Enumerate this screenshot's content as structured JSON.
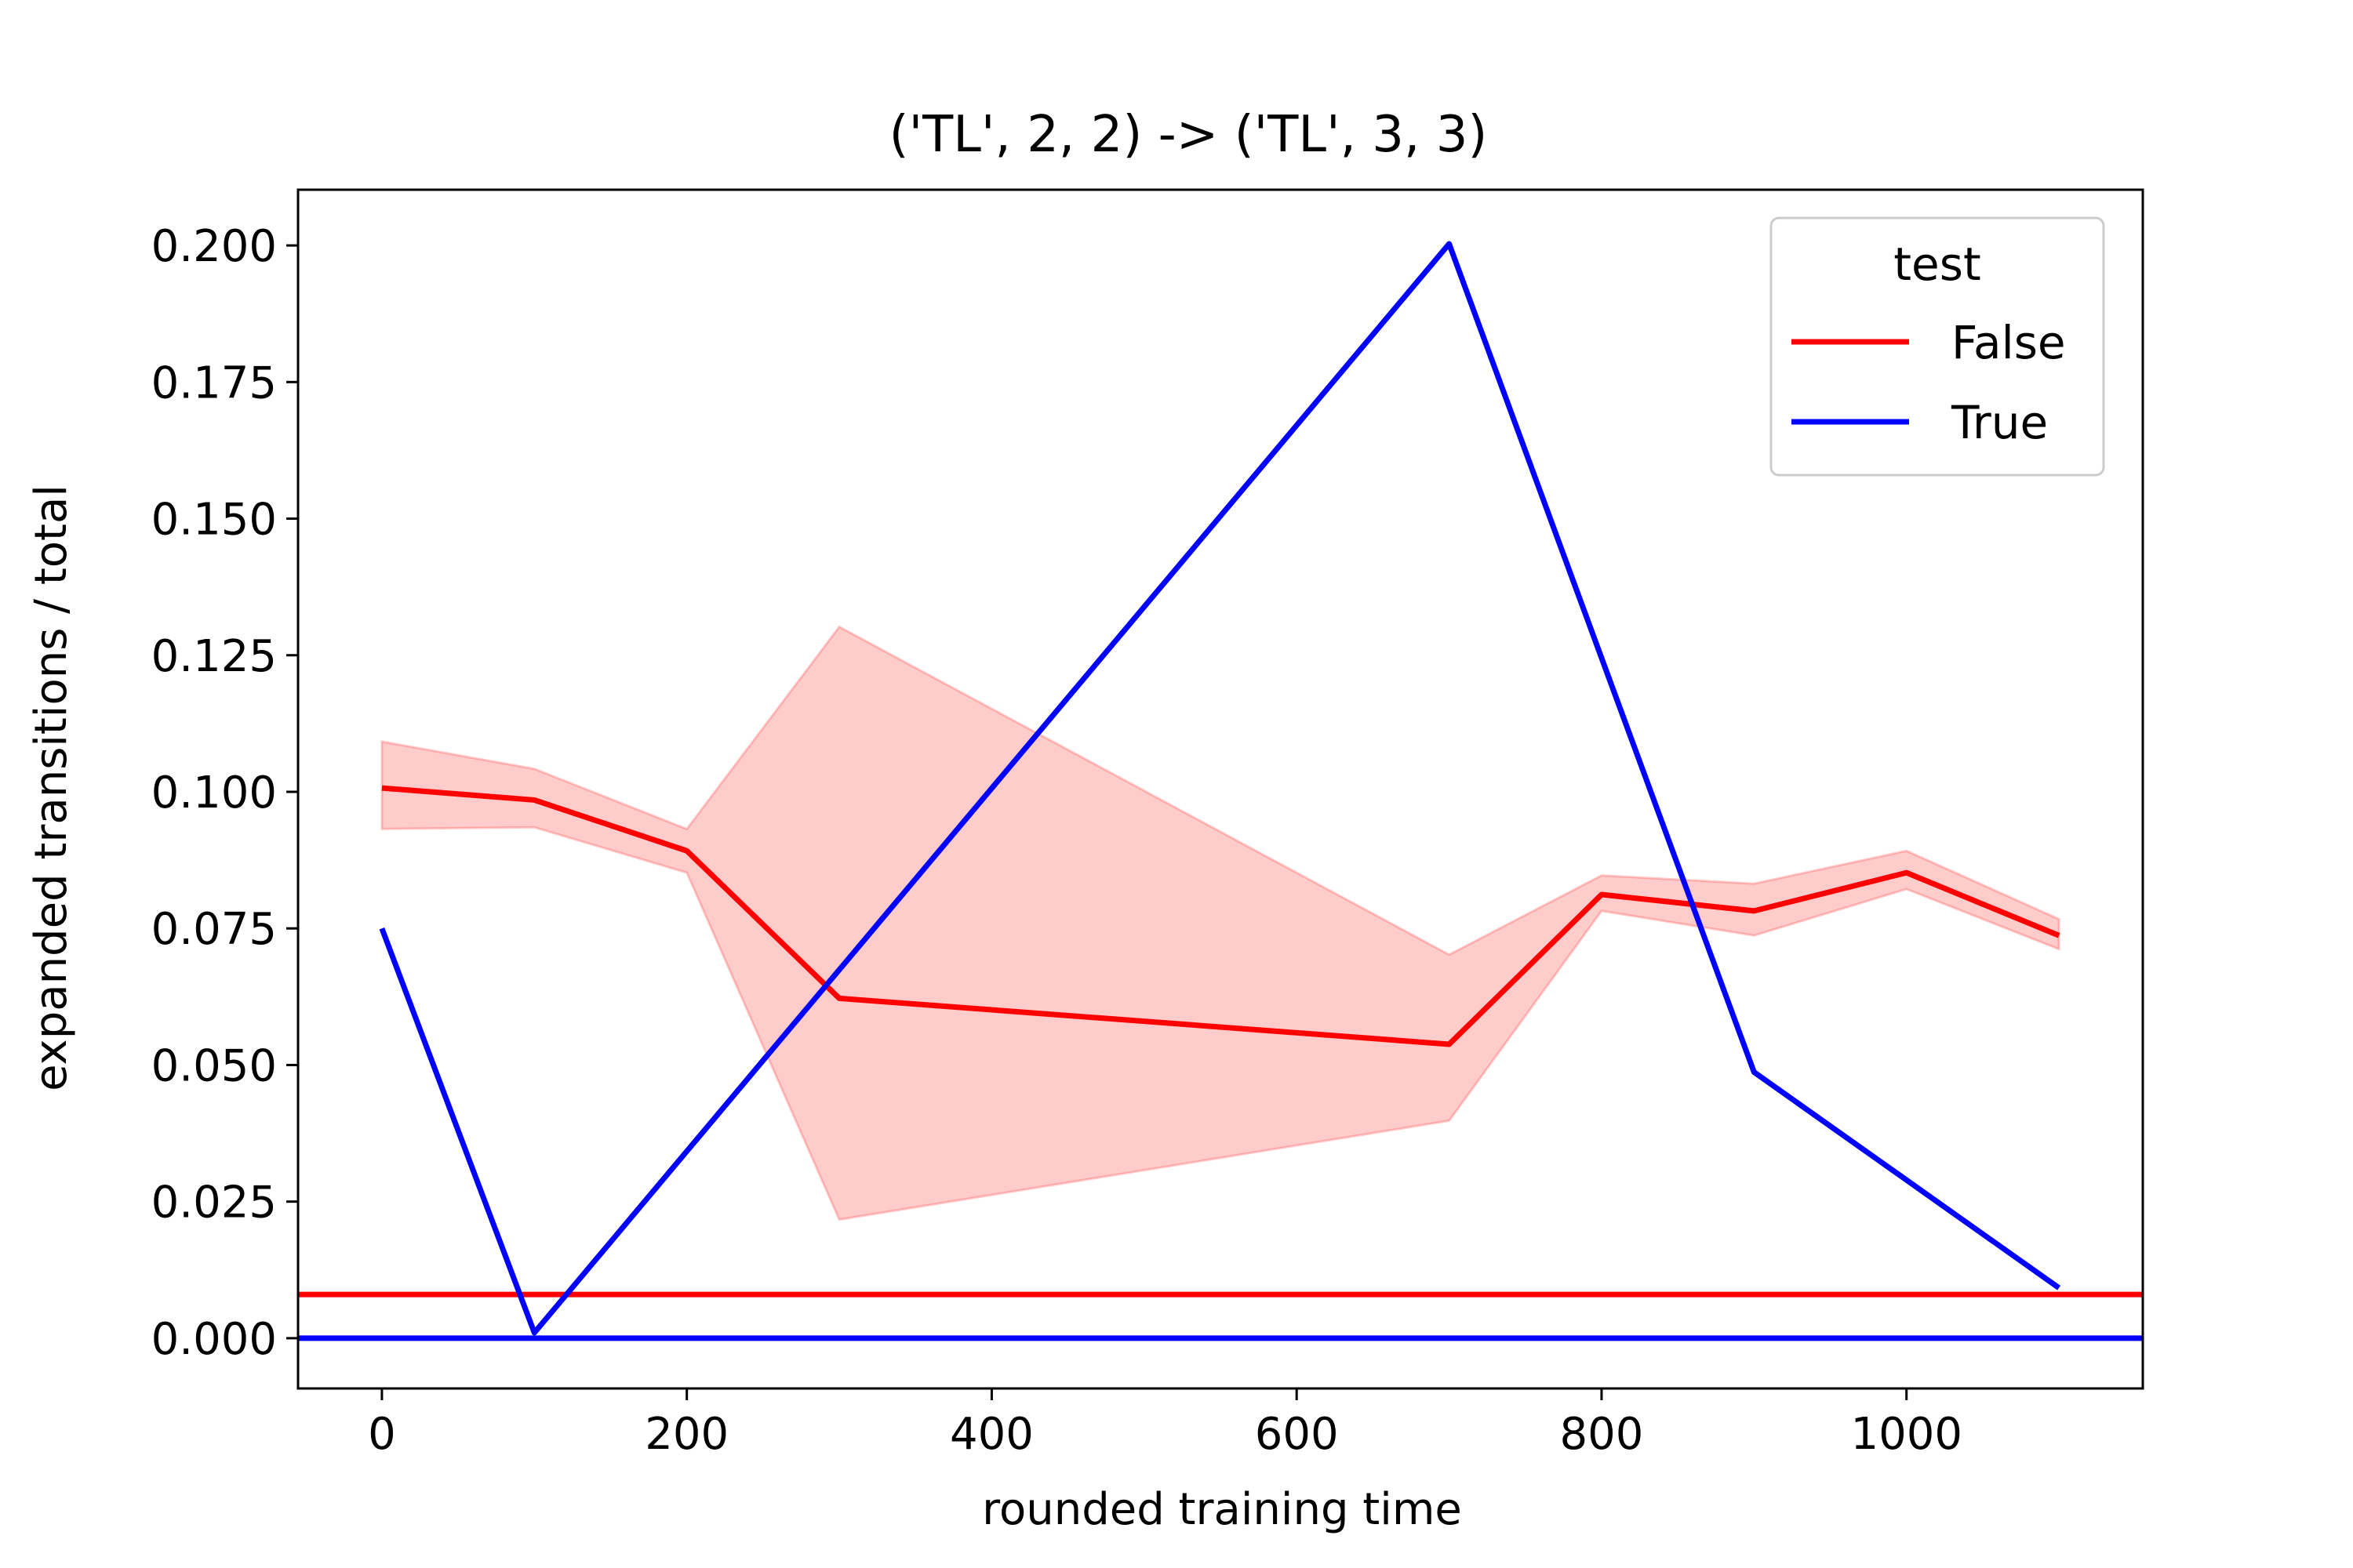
{
  "chart_data": {
    "type": "line",
    "title": "('TL', 2, 2) -> ('TL', 3, 3)",
    "xlabel": "rounded training time",
    "ylabel": "expanded transitions / total",
    "xlim": [
      -55,
      1155
    ],
    "ylim": [
      -0.0092,
      0.2102
    ],
    "x_ticks": [
      0,
      200,
      400,
      600,
      800,
      1000
    ],
    "x_tick_labels": [
      "0",
      "200",
      "400",
      "600",
      "800",
      "1000"
    ],
    "y_ticks": [
      0.0,
      0.025,
      0.05,
      0.075,
      0.1,
      0.125,
      0.15,
      0.175,
      0.2
    ],
    "y_tick_labels": [
      "0.000",
      "0.025",
      "0.050",
      "0.075",
      "0.100",
      "0.125",
      "0.150",
      "0.175",
      "0.200"
    ],
    "grid": false,
    "legend": {
      "title": "test",
      "placement": "top-right",
      "entries": [
        "False",
        "True"
      ]
    },
    "series": [
      {
        "name": "False",
        "color": "#ff0000",
        "x": [
          0,
          100,
          200,
          300,
          700,
          800,
          900,
          1000,
          1100
        ],
        "values": [
          0.1007,
          0.0985,
          0.0892,
          0.0622,
          0.0538,
          0.0812,
          0.0782,
          0.0852,
          0.0737
        ],
        "band_lower": [
          0.0932,
          0.0935,
          0.0852,
          0.0217,
          0.0398,
          0.0782,
          0.0737,
          0.0822,
          0.0712
        ],
        "band_upper": [
          0.1092,
          0.1042,
          0.0932,
          0.1302,
          0.0702,
          0.0847,
          0.0832,
          0.0892,
          0.0767
        ],
        "baseline": 0.008
      },
      {
        "name": "True",
        "color": "#0000ff",
        "x": [
          0,
          100,
          700,
          900,
          1100
        ],
        "values": [
          0.075,
          0.001,
          0.2003,
          0.0487,
          0.0092
        ],
        "baseline": 0.0
      }
    ]
  }
}
